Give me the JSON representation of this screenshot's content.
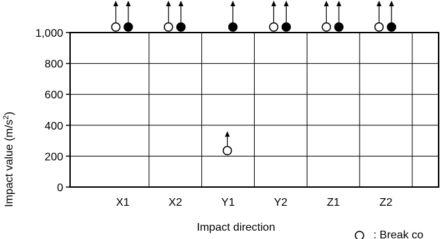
{
  "chart_data": {
    "type": "scatter",
    "xlabel": "Impact direction",
    "ylabel": "Impact value (m/s",
    "ylabel_sup": "2",
    "ylabel_tail": ")",
    "ylim": [
      0,
      1000
    ],
    "y_ticks": [
      0,
      200,
      400,
      600,
      800,
      1000
    ],
    "y_tick_labels": [
      "0",
      "200",
      "400",
      "600",
      "800",
      "1,000"
    ],
    "grid": true,
    "categories": [
      "X1",
      "X2",
      "Y1",
      "Y2",
      "Z1",
      "Z2"
    ],
    "series": [
      {
        "marker": "open-circle",
        "values": [
          1000,
          1000,
          200,
          1000,
          1000,
          1000
        ],
        "arrow_up": true,
        "present": [
          true,
          true,
          true,
          true,
          true,
          true
        ]
      },
      {
        "marker": "filled-circle",
        "values": [
          1000,
          1000,
          1000,
          1000,
          1000,
          1000
        ],
        "arrow_up": true,
        "present": [
          true,
          true,
          true,
          true,
          true,
          true
        ]
      }
    ],
    "legend": {
      "placement": "bottom-right",
      "entries": [
        {
          "marker": "open-circle",
          "label": ": Break co"
        }
      ]
    }
  }
}
